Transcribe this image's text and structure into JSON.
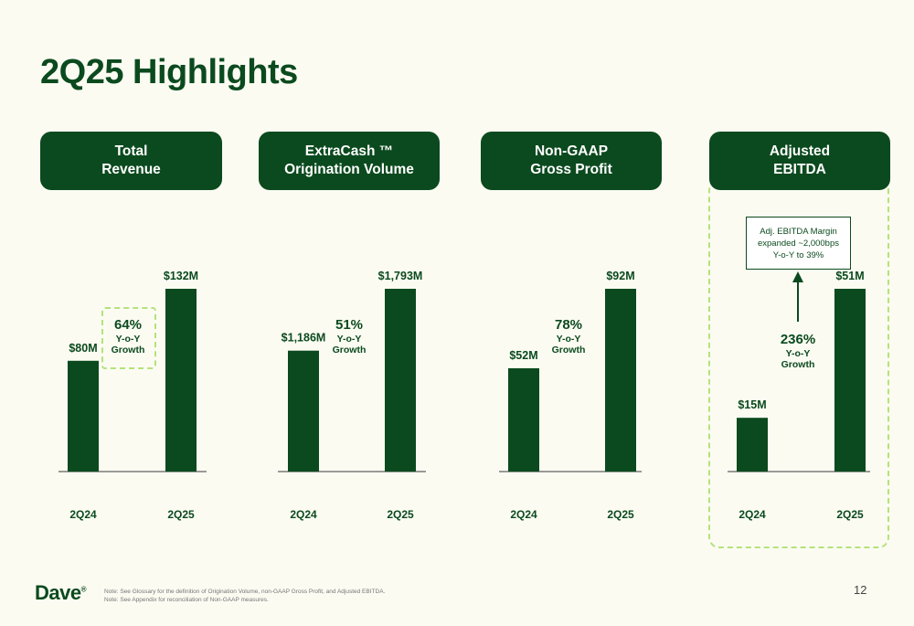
{
  "title": "2Q25 Highlights",
  "colors": {
    "bar": "#0b4a1e",
    "accent_dashed": "#b4e37a",
    "background": "#fbfbf2"
  },
  "callout": "Adj. EBITDA Margin\nexpanded ~2,000bps\nY-o-Y to 39%",
  "chart_data": [
    {
      "type": "bar",
      "title": "Total\nRevenue",
      "categories": [
        "2Q24",
        "2Q25"
      ],
      "values": [
        80,
        132
      ],
      "data_labels": [
        "$80M",
        "$132M"
      ],
      "growth_pct": "64%",
      "growth_label": [
        "Y-o-Y",
        "Growth"
      ],
      "unit": "$M",
      "ylim": [
        0,
        132
      ]
    },
    {
      "type": "bar",
      "title": "ExtraCash ™\nOrigination Volume",
      "categories": [
        "2Q24",
        "2Q25"
      ],
      "values": [
        1186,
        1793
      ],
      "data_labels": [
        "$1,186M",
        "$1,793M"
      ],
      "growth_pct": "51%",
      "growth_label": [
        "Y-o-Y",
        "Growth"
      ],
      "unit": "$M",
      "ylim": [
        0,
        1793
      ]
    },
    {
      "type": "bar",
      "title": "Non-GAAP\nGross Profit",
      "categories": [
        "2Q24",
        "2Q25"
      ],
      "values": [
        52,
        92
      ],
      "data_labels": [
        "$52M",
        "$92M"
      ],
      "growth_pct": "78%",
      "growth_label": [
        "Y-o-Y",
        "Growth"
      ],
      "unit": "$M",
      "ylim": [
        0,
        92
      ]
    },
    {
      "type": "bar",
      "title": "Adjusted\nEBITDA",
      "categories": [
        "2Q24",
        "2Q25"
      ],
      "values": [
        15,
        51
      ],
      "data_labels": [
        "$15M",
        "$51M"
      ],
      "growth_pct": "236%",
      "growth_label": [
        "Y-o-Y",
        "Growth"
      ],
      "unit": "$M",
      "ylim": [
        0,
        51
      ]
    }
  ],
  "footer": {
    "logo": "Dave",
    "logo_mark": "®",
    "notes": [
      "Note:   See Glossary for the definition of Origination Volume, non-GAAP Gross Profit, and Adjusted EBITDA.",
      "Note:   See Appendix for reconciliation of Non-GAAP measures."
    ],
    "page_number": "12"
  }
}
